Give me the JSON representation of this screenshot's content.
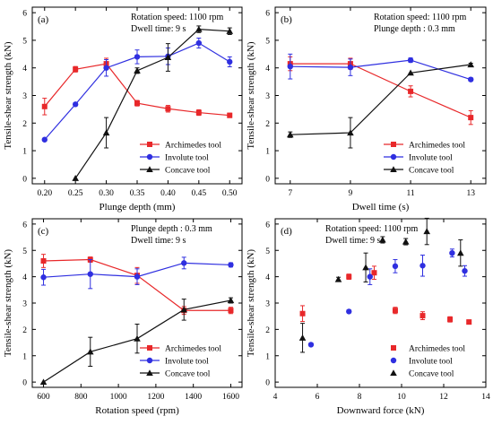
{
  "colors": {
    "Archimedes tool": "#e8282a",
    "Involute tool": "#2f2fe0",
    "Concave tool": "#111111"
  },
  "chart_data": [
    {
      "type": "line",
      "panel_label": "(a)",
      "xlabel": "Plunge depth (mm)",
      "ylabel": "Tensile-shear strength (kN)",
      "xlim": [
        0.18,
        0.52
      ],
      "ylim": [
        -0.2,
        6.2
      ],
      "xticks": [
        "0.20",
        "0.25",
        "0.30",
        "0.35",
        "0.40",
        "0.45",
        "0.50"
      ],
      "yticks": [
        "0",
        "1",
        "2",
        "3",
        "4",
        "5",
        "6"
      ],
      "annotations": [
        "Rotation speed: 1100 rpm",
        "Dwell time: 9 s"
      ],
      "legend_position": "bottom-right",
      "series": [
        {
          "name": "Archimedes tool",
          "marker": "square",
          "line": true,
          "x": [
            0.2,
            0.25,
            0.3,
            0.35,
            0.4,
            0.45,
            0.5
          ],
          "y": [
            2.6,
            3.95,
            4.15,
            2.72,
            2.52,
            2.38,
            2.28
          ],
          "err": [
            0.3,
            0.1,
            0.2,
            0.1,
            0.12,
            0.1,
            0.08
          ]
        },
        {
          "name": "Involute tool",
          "marker": "circle",
          "line": true,
          "x": [
            0.2,
            0.25,
            0.3,
            0.35,
            0.4,
            0.45,
            0.5
          ],
          "y": [
            1.4,
            2.68,
            4.0,
            4.4,
            4.42,
            4.9,
            4.22
          ],
          "err": [
            0.05,
            0.05,
            0.3,
            0.25,
            0.3,
            0.18,
            0.18
          ]
        },
        {
          "name": "Concave tool",
          "marker": "triangle",
          "line": true,
          "x": [
            0.25,
            0.3,
            0.35,
            0.4,
            0.45,
            0.5
          ],
          "y": [
            0.0,
            1.65,
            3.9,
            4.38,
            5.4,
            5.33
          ],
          "err": [
            0.0,
            0.55,
            0.1,
            0.5,
            0.12,
            0.12
          ]
        }
      ]
    },
    {
      "type": "line",
      "panel_label": "(b)",
      "xlabel": "Dwell time (s)",
      "ylabel": "Tensile-shear strength (kN)",
      "xlim": [
        6.5,
        13.5
      ],
      "ylim": [
        -0.2,
        6.2
      ],
      "xticks": [
        "7",
        "9",
        "11",
        "13"
      ],
      "yticks": [
        "0",
        "1",
        "2",
        "3",
        "4",
        "5",
        "6"
      ],
      "annotations": [
        "Rotation speed: 1100 rpm",
        "Plunge depth : 0.3 mm"
      ],
      "legend_position": "bottom-right",
      "series": [
        {
          "name": "Archimedes tool",
          "marker": "square",
          "line": true,
          "x": [
            7,
            9,
            11,
            13
          ],
          "y": [
            4.15,
            4.15,
            3.15,
            2.2
          ],
          "err": [
            0.25,
            0.2,
            0.2,
            0.25
          ]
        },
        {
          "name": "Involute tool",
          "marker": "circle",
          "line": true,
          "x": [
            7,
            9,
            11,
            13
          ],
          "y": [
            4.05,
            4.02,
            4.28,
            3.58
          ],
          "err": [
            0.45,
            0.3,
            0.08,
            0.06
          ]
        },
        {
          "name": "Concave tool",
          "marker": "triangle",
          "line": true,
          "x": [
            7,
            9,
            11,
            13
          ],
          "y": [
            1.58,
            1.65,
            3.82,
            4.12
          ],
          "err": [
            0.1,
            0.55,
            0.0,
            0.05
          ]
        }
      ]
    },
    {
      "type": "line",
      "panel_label": "(c)",
      "xlabel": "Rotation speed (rpm)",
      "ylabel": "Tensile-shear strength (kN)",
      "xlim": [
        540,
        1660
      ],
      "ylim": [
        -0.2,
        6.2
      ],
      "xticks": [
        "600",
        "800",
        "1000",
        "1200",
        "1400",
        "1600"
      ],
      "yticks": [
        "0",
        "1",
        "2",
        "3",
        "4",
        "5",
        "6"
      ],
      "annotations": [
        "Plunge depth : 0.3 mm",
        "Dwell time: 9 s"
      ],
      "legend_position": "bottom-right",
      "series": [
        {
          "name": "Archimedes tool",
          "marker": "square",
          "line": true,
          "x": [
            600,
            850,
            1100,
            1350,
            1600
          ],
          "y": [
            4.6,
            4.65,
            4.05,
            2.72,
            2.72
          ],
          "err": [
            0.25,
            0.1,
            0.3,
            0.15,
            0.12
          ]
        },
        {
          "name": "Involute tool",
          "marker": "circle",
          "line": true,
          "x": [
            600,
            850,
            1100,
            1350,
            1600
          ],
          "y": [
            3.98,
            4.1,
            4.0,
            4.52,
            4.45
          ],
          "err": [
            0.3,
            0.55,
            0.3,
            0.22,
            0.08
          ]
        },
        {
          "name": "Concave tool",
          "marker": "triangle",
          "line": true,
          "x": [
            600,
            850,
            1100,
            1350,
            1600
          ],
          "y": [
            0.0,
            1.15,
            1.65,
            2.75,
            3.1
          ],
          "err": [
            0.0,
            0.55,
            0.55,
            0.4,
            0.1
          ]
        }
      ]
    },
    {
      "type": "scatter",
      "panel_label": "(d)",
      "xlabel": "Downward force (kN)",
      "ylabel": "Tensile-shear strength (kN)",
      "xlim": [
        4,
        14
      ],
      "ylim": [
        -0.2,
        6.2
      ],
      "xticks": [
        "4",
        "6",
        "8",
        "10",
        "12",
        "14"
      ],
      "yticks": [
        "0",
        "1",
        "2",
        "3",
        "4",
        "5",
        "6"
      ],
      "annotations": [
        "Rotation speed: 1100 rpm",
        "Dwell time: 9 s"
      ],
      "legend_position": "bottom-right",
      "series": [
        {
          "name": "Archimedes tool",
          "marker": "square",
          "line": false,
          "x": [
            5.3,
            7.5,
            8.7,
            9.7,
            11.0,
            12.3,
            13.2
          ],
          "y": [
            2.6,
            4.0,
            4.15,
            2.72,
            2.52,
            2.38,
            2.28
          ],
          "err": [
            0.3,
            0.1,
            0.25,
            0.12,
            0.15,
            0.1,
            0.08
          ]
        },
        {
          "name": "Involute tool",
          "marker": "circle",
          "line": false,
          "x": [
            5.7,
            7.5,
            8.5,
            9.7,
            11.0,
            12.4,
            13.0
          ],
          "y": [
            1.42,
            2.68,
            4.0,
            4.4,
            4.42,
            4.9,
            4.22
          ],
          "err": [
            0.05,
            0.05,
            0.3,
            0.25,
            0.4,
            0.15,
            0.2
          ]
        },
        {
          "name": "Concave tool",
          "marker": "triangle",
          "line": false,
          "x": [
            5.3,
            7.0,
            8.3,
            9.1,
            10.2,
            11.2,
            12.8
          ],
          "y": [
            1.68,
            3.9,
            4.35,
            5.4,
            5.33,
            5.72,
            4.9
          ],
          "err": [
            0.55,
            0.08,
            0.55,
            0.12,
            0.12,
            0.5,
            0.5
          ]
        }
      ]
    }
  ]
}
